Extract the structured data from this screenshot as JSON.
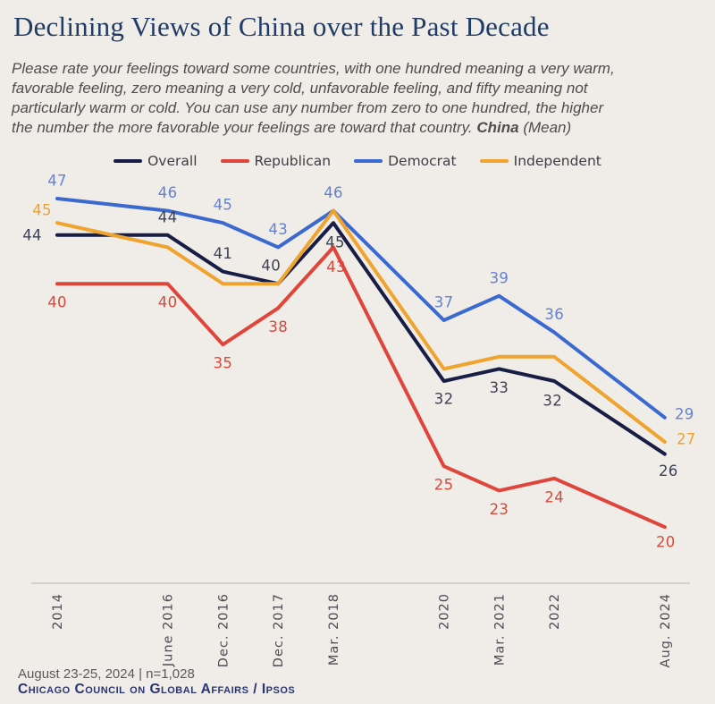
{
  "header": {
    "title": "Declining Views of China over the Past Decade",
    "subtitle_line1": "Please rate your feelings toward some countries, with one hundred meaning a very warm,",
    "subtitle_line2": "favorable feeling, zero meaning a very cold, unfavorable feeling, and fifty meaning not",
    "subtitle_line3": "particularly warm or cold. You can use any number from zero to one hundred, the higher",
    "subtitle_line4_prefix": "the number the more favorable your feelings are toward that country. ",
    "subtitle_line4_bold": "China",
    "subtitle_line4_tail": " (Mean)"
  },
  "chart_data": {
    "type": "line",
    "title": "Declining Views of China over the Past Decade",
    "categories": [
      "2014",
      "June 2016",
      "Dec. 2016",
      "Dec. 2017",
      "Mar. 2018",
      "2020",
      "Mar. 2021",
      "2022",
      "Aug. 2024"
    ],
    "x_slots": [
      0,
      2,
      3,
      4,
      5,
      7,
      8,
      9,
      11
    ],
    "grid": false,
    "y_axis_visible": false,
    "legend_position": "top",
    "series": [
      {
        "name": "Overall",
        "color": "#171d44",
        "label_color": "#3c4155",
        "values": [
          44,
          44,
          41,
          40,
          45,
          32,
          33,
          32,
          26
        ],
        "labels": [
          44,
          44,
          41,
          40,
          45,
          32,
          33,
          32,
          26
        ]
      },
      {
        "name": "Republican",
        "color": "#e0453c",
        "label_color": "#d6493d",
        "values": [
          40,
          40,
          35,
          38,
          43,
          25,
          23,
          24,
          20
        ],
        "labels": [
          40,
          40,
          35,
          38,
          43,
          25,
          23,
          24,
          20
        ]
      },
      {
        "name": "Democrat",
        "color": "#3a69cf",
        "label_color": "#6282d3",
        "values": [
          47,
          46,
          45,
          43,
          46,
          37,
          39,
          36,
          29
        ],
        "labels": [
          47,
          46,
          45,
          43,
          46,
          37,
          39,
          36,
          29
        ]
      },
      {
        "name": "Independent",
        "color": "#eea42f",
        "label_color": "#e9a42e",
        "values": [
          45,
          43,
          40,
          40,
          46,
          33,
          34,
          34,
          27
        ],
        "labels": [
          45,
          null,
          null,
          null,
          null,
          null,
          null,
          null,
          27
        ]
      }
    ]
  },
  "footer": {
    "fieldwork": "August 23-25, 2024 | n=1,028",
    "source": "Chicago Council on Global Affairs / Ipsos"
  }
}
